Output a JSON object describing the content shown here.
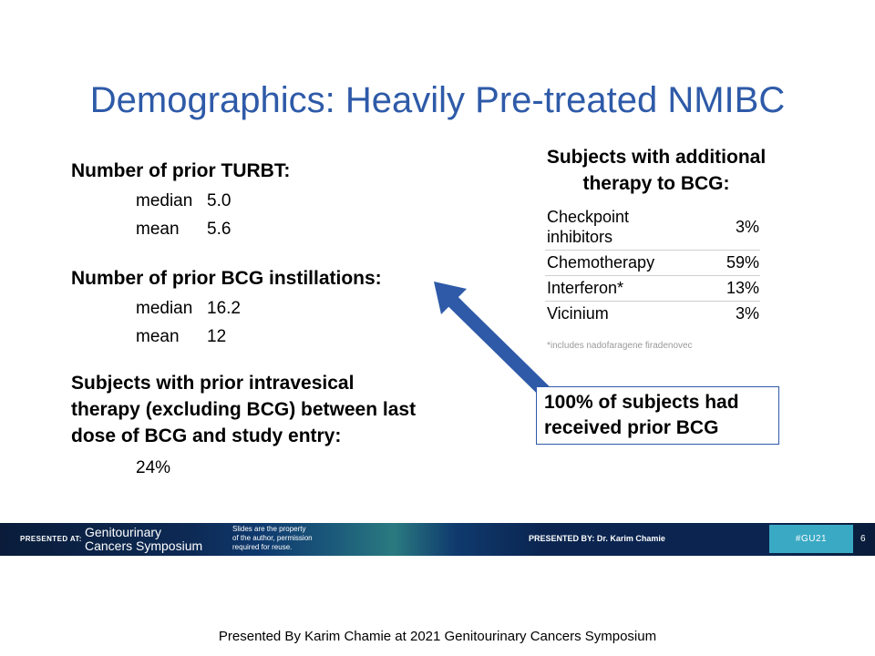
{
  "slide": {
    "title": "Demographics: Heavily Pre-treated NMIBC",
    "left": {
      "turbt": {
        "heading": "Number of prior TURBT:",
        "median_label": "median",
        "median_value": "5.0",
        "mean_label": "mean",
        "mean_value": "5.6"
      },
      "bcg": {
        "heading": "Number of prior BCG instillations:",
        "median_label": "median",
        "median_value": "16.2",
        "mean_label": "mean",
        "mean_value": "12"
      },
      "intravesical": {
        "heading_lines": [
          "Subjects with prior intravesical",
          "therapy (excluding BCG) between last",
          "dose of BCG and study entry:"
        ],
        "value": "24%"
      }
    },
    "right": {
      "title_lines": [
        "Subjects with additional",
        "therapy to BCG:"
      ],
      "rows": [
        {
          "label_lines": [
            "Checkpoint",
            "inhibitors"
          ],
          "value": "3%"
        },
        {
          "label_lines": [
            "Chemotherapy"
          ],
          "value": "59%"
        },
        {
          "label_lines": [
            "Interferon*"
          ],
          "value": "13%"
        },
        {
          "label_lines": [
            "Vicinium"
          ],
          "value": "3%"
        }
      ],
      "footnote": "*includes nadofaragene firadenovec"
    },
    "callout": {
      "lines": [
        "100% of subjects had",
        "received prior BCG"
      ]
    },
    "colors": {
      "title": "#2e5aa8",
      "arrow": "#2e5aa8",
      "callout_border": "#2e5aa8",
      "banner": "#0b2550",
      "badge": "#3aa9c4"
    }
  },
  "banner": {
    "presented_at": "PRESENTED AT:",
    "symposium_lines": [
      "Genitourinary",
      "Cancers Symposium"
    ],
    "property_lines": [
      "Slides are the property",
      "of the author, permission",
      "required for reuse."
    ],
    "presented_by": "PRESENTED BY: Dr. Karim Chamie",
    "hashtag": "#GU21",
    "page_number": "6"
  },
  "credit": "Presented By Karim Chamie at 2021 Genitourinary  Cancers Symposium"
}
